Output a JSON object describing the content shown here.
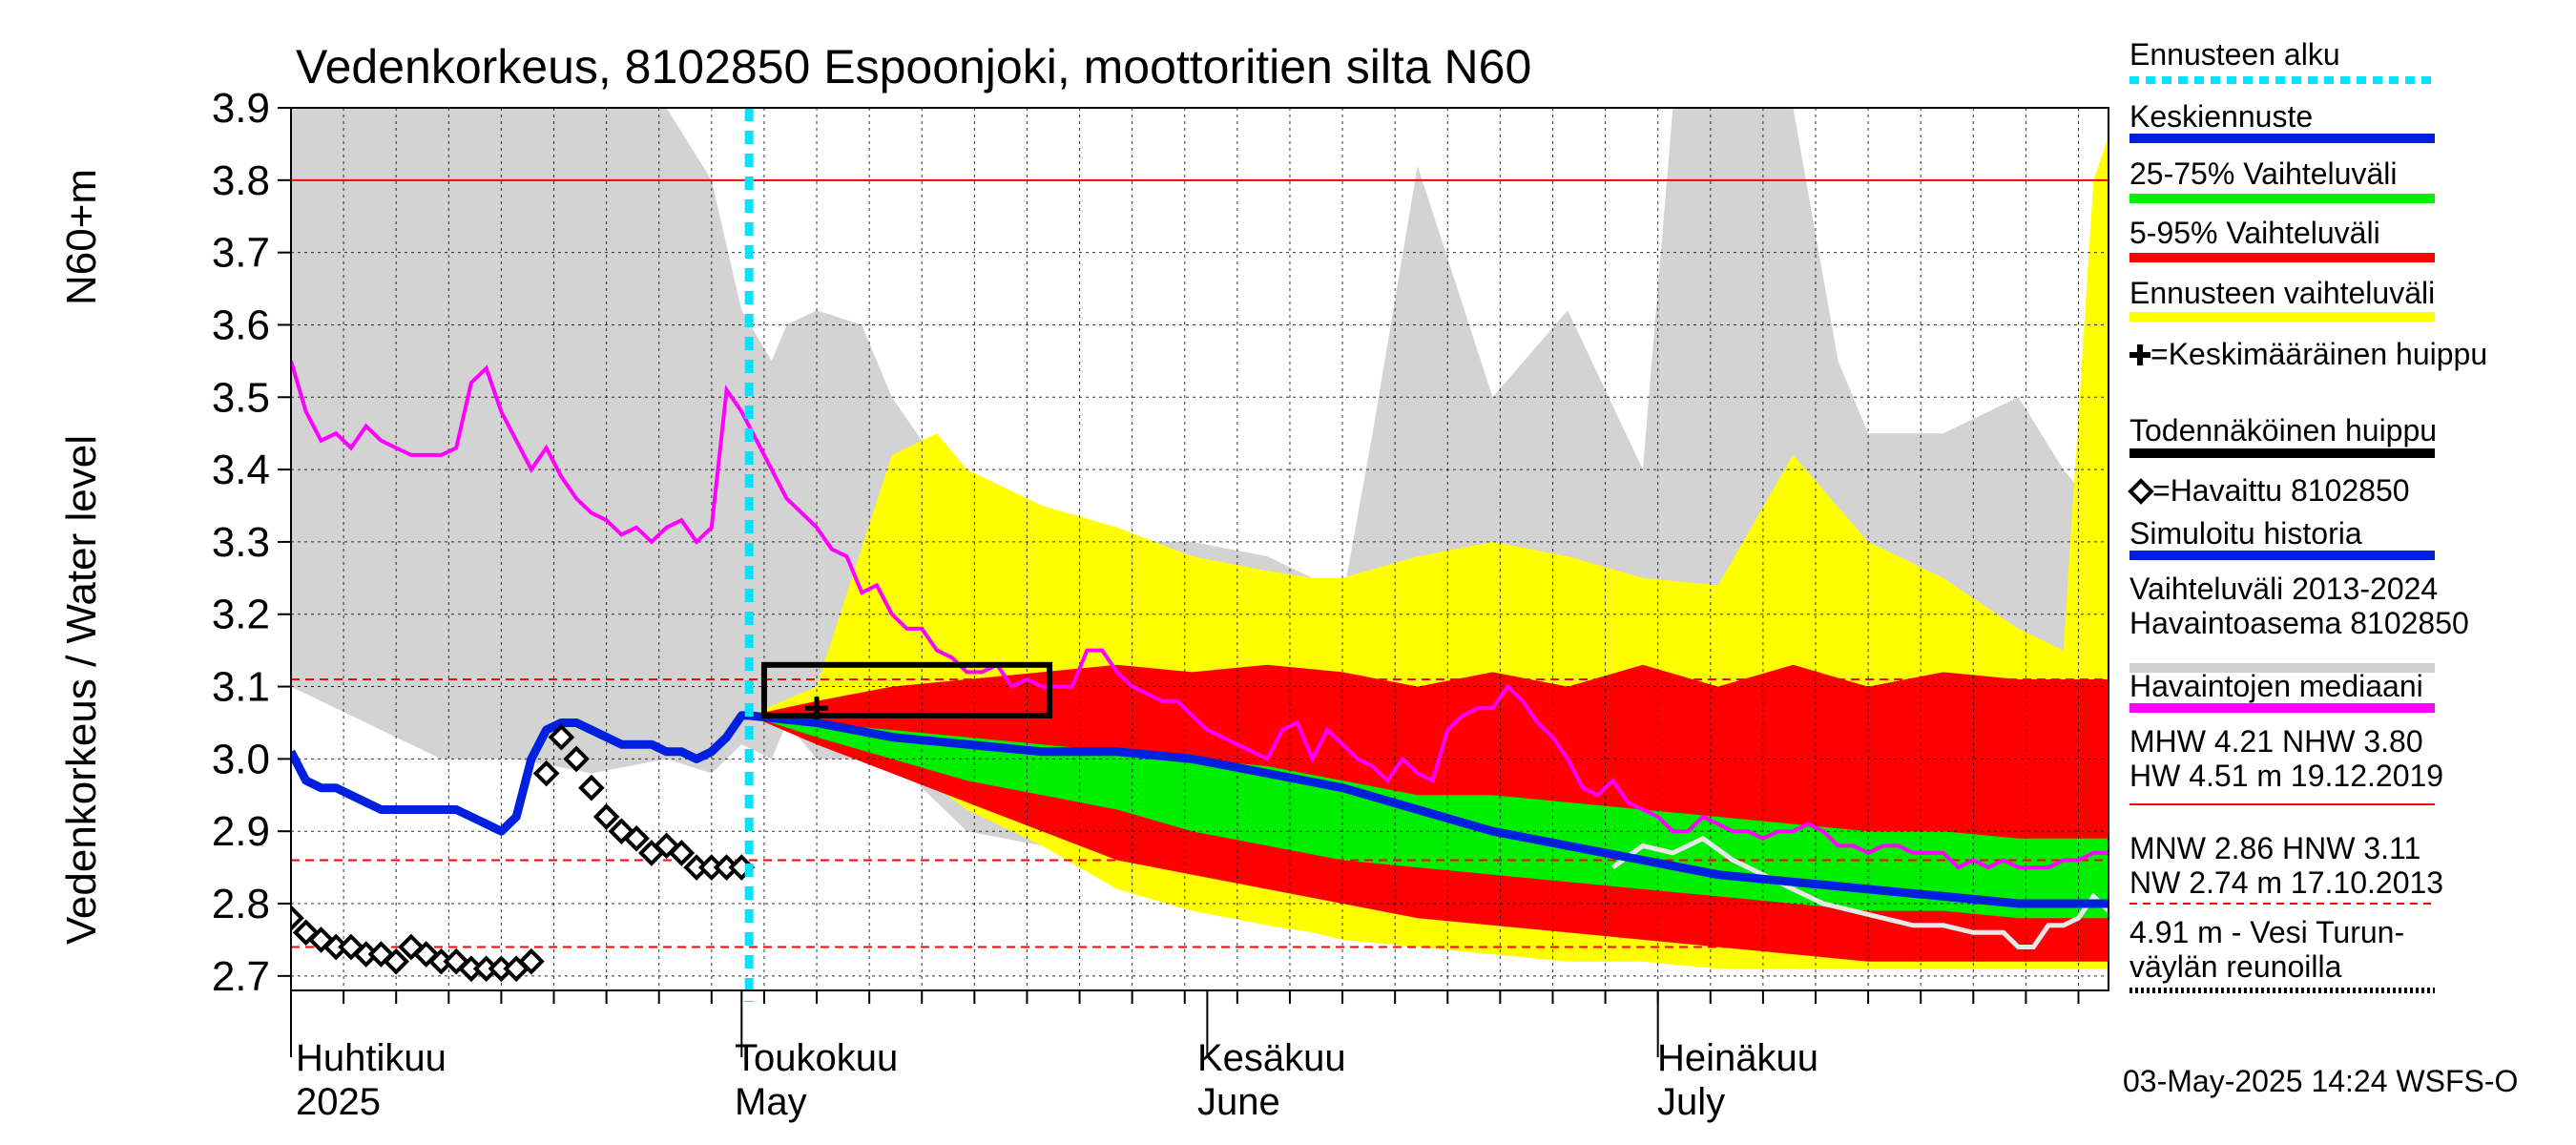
{
  "title": "Vedenkorkeus, 8102850 Espoonjoki, moottoritien silta N60",
  "y_axis_label_1": "N60+m",
  "y_axis_label_2": "Vedenkorkeus / Water level",
  "footer": "03-May-2025 14:24 WSFS-O",
  "months": [
    {
      "fi": "Huhtikuu",
      "en": "2025"
    },
    {
      "fi": "Toukokuu",
      "en": "May"
    },
    {
      "fi": "Kesäkuu",
      "en": "June"
    },
    {
      "fi": "Heinäkuu",
      "en": "July"
    }
  ],
  "legend": [
    {
      "label": "Ennusteen alku",
      "color": "#00e5ff",
      "style": "dotted"
    },
    {
      "label": "Keskiennuste",
      "color": "#0020e0",
      "style": "solid"
    },
    {
      "label": "25-75% Vaihteluväli",
      "color": "#00ee00",
      "style": "solid"
    },
    {
      "label": "5-95% Vaihteluväli",
      "color": "#ff0000",
      "style": "solid"
    },
    {
      "label": "Ennusteen vaihteluväli",
      "color": "#ffff00",
      "style": "solid"
    },
    {
      "label": "=Keskimääräinen huippu",
      "color": "#000000",
      "style": "plus"
    },
    {
      "label": "Todennäköinen huippu",
      "color": "#000000",
      "style": "solid"
    },
    {
      "label": "=Havaittu 8102850",
      "color": "#000000",
      "style": "diamond"
    },
    {
      "label": "Simuloitu historia",
      "color": "#0020e0",
      "style": "solid"
    },
    {
      "label": "Vaihteluväli 2013-2024\n Havaintoasema 8102850",
      "color": "#d0d0d0",
      "style": "solid"
    },
    {
      "label": "Havaintojen mediaani",
      "color": "#ff00ff",
      "style": "solid"
    },
    {
      "label": "MHW   4.21 NHW   3.80\nHW   4.51 m 19.12.2019",
      "color": "#ff0000",
      "style": "thin"
    },
    {
      "label": "MNW   2.86 HNW   3.11\nNW   2.74 m 17.10.2013",
      "color": "#ff0000",
      "style": "dashed"
    },
    {
      "label": "4.91 m - Vesi Turun-\nväylän reunoilla",
      "color": "#000000",
      "style": "dotted-thin"
    }
  ],
  "chart_data": {
    "type": "line",
    "x_range_days": [
      0,
      121
    ],
    "x_start_label": "2025-04-01",
    "ylim": [
      2.68,
      3.9
    ],
    "yticks": [
      2.7,
      2.8,
      2.9,
      3.0,
      3.1,
      3.2,
      3.3,
      3.4,
      3.5,
      3.6,
      3.7,
      3.8,
      3.9
    ],
    "forecast_start_day": 30.5,
    "reference_lines": [
      {
        "name": "NHW",
        "value": 3.8,
        "style": "solid"
      },
      {
        "name": "HNW",
        "value": 3.11,
        "style": "dashed"
      },
      {
        "name": "MNW",
        "value": 2.86,
        "style": "dashed"
      },
      {
        "name": "NW",
        "value": 2.74,
        "style": "dashed"
      }
    ],
    "probable_peak_box": {
      "x0": 31.5,
      "x1": 50.5,
      "y0": 3.06,
      "y1": 3.13
    },
    "mean_peak": {
      "x": 35,
      "y": 3.07
    },
    "historic_range": {
      "x": [
        0,
        5,
        10,
        15,
        20,
        25,
        28,
        30,
        32,
        33,
        35,
        38,
        40,
        45,
        50,
        55,
        60,
        65,
        68,
        70,
        72,
        75,
        80,
        85,
        90,
        92,
        95,
        100,
        103,
        105,
        110,
        115,
        118,
        120,
        121
      ],
      "upper": [
        3.9,
        3.9,
        3.9,
        3.9,
        3.9,
        3.9,
        3.8,
        3.62,
        3.55,
        3.6,
        3.62,
        3.6,
        3.5,
        3.35,
        3.32,
        3.3,
        3.3,
        3.28,
        3.25,
        3.22,
        3.45,
        3.82,
        3.5,
        3.62,
        3.4,
        3.9,
        3.9,
        3.9,
        3.55,
        3.45,
        3.45,
        3.5,
        3.4,
        3.35,
        3.4
      ],
      "lower": [
        3.1,
        3.05,
        3.0,
        3.0,
        2.98,
        3.0,
        2.98,
        3.02,
        3.0,
        3.05,
        3.0,
        3.0,
        3.0,
        2.9,
        2.88,
        2.85,
        2.83,
        2.82,
        2.82,
        2.8,
        2.8,
        2.8,
        2.8,
        2.78,
        2.76,
        2.74,
        2.74,
        2.72,
        2.72,
        2.72,
        2.72,
        2.72,
        2.72,
        2.72,
        2.72
      ]
    },
    "forecast_range": {
      "x": [
        30.5,
        35,
        40,
        43,
        45,
        50,
        55,
        60,
        65,
        68,
        70,
        75,
        80,
        85,
        90,
        95,
        100,
        105,
        110,
        115,
        118,
        120,
        121
      ],
      "upper": [
        3.06,
        3.1,
        3.42,
        3.45,
        3.4,
        3.35,
        3.32,
        3.28,
        3.26,
        3.25,
        3.25,
        3.28,
        3.3,
        3.28,
        3.25,
        3.24,
        3.42,
        3.3,
        3.25,
        3.18,
        3.15,
        3.8,
        3.86
      ],
      "lower": [
        3.06,
        3.03,
        3.0,
        2.96,
        2.93,
        2.88,
        2.82,
        2.79,
        2.77,
        2.76,
        2.75,
        2.74,
        2.73,
        2.72,
        2.72,
        2.71,
        2.71,
        2.71,
        2.71,
        2.71,
        2.71,
        2.71,
        2.71
      ]
    },
    "p5_95": {
      "x": [
        30.5,
        35,
        40,
        45,
        50,
        55,
        60,
        65,
        70,
        75,
        80,
        85,
        90,
        95,
        100,
        105,
        110,
        115,
        120,
        121
      ],
      "upper": [
        3.06,
        3.08,
        3.1,
        3.11,
        3.12,
        3.13,
        3.12,
        3.13,
        3.12,
        3.1,
        3.12,
        3.1,
        3.13,
        3.1,
        3.13,
        3.1,
        3.12,
        3.11,
        3.11,
        3.11
      ],
      "lower": [
        3.06,
        3.02,
        2.98,
        2.94,
        2.9,
        2.86,
        2.84,
        2.82,
        2.8,
        2.78,
        2.77,
        2.76,
        2.75,
        2.74,
        2.73,
        2.72,
        2.72,
        2.72,
        2.72,
        2.72
      ]
    },
    "p25_75": {
      "x": [
        30.5,
        35,
        40,
        45,
        50,
        55,
        60,
        65,
        70,
        75,
        80,
        85,
        90,
        95,
        100,
        105,
        110,
        115,
        120,
        121
      ],
      "upper": [
        3.06,
        3.05,
        3.04,
        3.03,
        3.02,
        3.01,
        3.0,
        2.99,
        2.97,
        2.95,
        2.95,
        2.94,
        2.93,
        2.92,
        2.91,
        2.9,
        2.9,
        2.89,
        2.89,
        2.89
      ],
      "lower": [
        3.06,
        3.03,
        3.0,
        2.97,
        2.95,
        2.93,
        2.9,
        2.88,
        2.86,
        2.85,
        2.84,
        2.83,
        2.82,
        2.81,
        2.8,
        2.79,
        2.79,
        2.78,
        2.78,
        2.78
      ]
    },
    "median_forecast": {
      "x": [
        30.5,
        35,
        40,
        45,
        50,
        55,
        60,
        65,
        70,
        75,
        80,
        85,
        90,
        95,
        100,
        105,
        110,
        115,
        120,
        121
      ],
      "y": [
        3.06,
        3.05,
        3.03,
        3.02,
        3.01,
        3.01,
        3.0,
        2.98,
        2.96,
        2.93,
        2.9,
        2.88,
        2.86,
        2.84,
        2.83,
        2.82,
        2.81,
        2.8,
        2.8,
        2.8
      ]
    },
    "simulated_history": {
      "x": [
        0,
        1,
        2,
        3,
        4,
        5,
        6,
        7,
        8,
        9,
        10,
        11,
        12,
        13,
        14,
        15,
        16,
        17,
        18,
        19,
        20,
        21,
        22,
        23,
        24,
        25,
        26,
        27,
        28,
        29,
        30,
        30.5
      ],
      "y": [
        3.01,
        2.97,
        2.96,
        2.96,
        2.95,
        2.94,
        2.93,
        2.93,
        2.93,
        2.93,
        2.93,
        2.93,
        2.92,
        2.91,
        2.9,
        2.92,
        3.0,
        3.04,
        3.05,
        3.05,
        3.04,
        3.03,
        3.02,
        3.02,
        3.02,
        3.01,
        3.01,
        3.0,
        3.01,
        3.03,
        3.06,
        3.06
      ]
    },
    "simulated_gray": {
      "x": [
        88,
        90,
        92,
        94,
        96,
        98,
        100,
        102,
        104,
        106,
        108,
        110,
        112,
        114,
        115,
        116,
        117,
        118,
        119,
        120,
        121
      ],
      "y": [
        2.85,
        2.88,
        2.87,
        2.89,
        2.86,
        2.84,
        2.82,
        2.8,
        2.79,
        2.78,
        2.77,
        2.77,
        2.76,
        2.76,
        2.74,
        2.74,
        2.77,
        2.77,
        2.78,
        2.81,
        2.79
      ]
    },
    "observed_median": {
      "x": [
        0,
        1,
        2,
        3,
        4,
        5,
        6,
        7,
        8,
        9,
        10,
        11,
        12,
        13,
        14,
        15,
        16,
        17,
        18,
        19,
        20,
        21,
        22,
        23,
        24,
        25,
        26,
        27,
        28,
        29,
        30,
        31,
        32,
        33,
        34,
        35,
        36,
        37,
        38,
        39,
        40,
        41,
        42,
        43,
        44,
        45,
        46,
        47,
        48,
        49,
        50,
        51,
        52,
        53,
        54,
        55,
        56,
        57,
        58,
        59,
        60,
        61,
        62,
        63,
        64,
        65,
        66,
        67,
        68,
        69,
        70,
        71,
        72,
        73,
        74,
        75,
        76,
        77,
        78,
        79,
        80,
        81,
        82,
        83,
        84,
        85,
        86,
        87,
        88,
        89,
        90,
        91,
        92,
        93,
        94,
        95,
        96,
        97,
        98,
        99,
        100,
        101,
        102,
        103,
        104,
        105,
        106,
        107,
        108,
        109,
        110,
        111,
        112,
        113,
        114,
        115,
        116,
        117,
        118,
        119,
        120,
        121
      ],
      "y": [
        3.55,
        3.48,
        3.44,
        3.45,
        3.43,
        3.46,
        3.44,
        3.43,
        3.42,
        3.42,
        3.42,
        3.43,
        3.52,
        3.54,
        3.48,
        3.44,
        3.4,
        3.43,
        3.39,
        3.36,
        3.34,
        3.33,
        3.31,
        3.32,
        3.3,
        3.32,
        3.33,
        3.3,
        3.32,
        3.51,
        3.48,
        3.44,
        3.4,
        3.36,
        3.34,
        3.32,
        3.29,
        3.28,
        3.23,
        3.24,
        3.2,
        3.18,
        3.18,
        3.15,
        3.14,
        3.12,
        3.12,
        3.13,
        3.1,
        3.11,
        3.1,
        3.1,
        3.1,
        3.15,
        3.15,
        3.12,
        3.1,
        3.09,
        3.08,
        3.08,
        3.06,
        3.04,
        3.03,
        3.02,
        3.01,
        3.0,
        3.04,
        3.05,
        3.0,
        3.04,
        3.02,
        3.0,
        2.99,
        2.97,
        3.0,
        2.98,
        2.97,
        3.04,
        3.06,
        3.07,
        3.07,
        3.1,
        3.08,
        3.05,
        3.03,
        3.0,
        2.96,
        2.95,
        2.97,
        2.94,
        2.93,
        2.92,
        2.9,
        2.9,
        2.92,
        2.91,
        2.9,
        2.9,
        2.89,
        2.9,
        2.9,
        2.91,
        2.9,
        2.88,
        2.88,
        2.87,
        2.88,
        2.88,
        2.87,
        2.87,
        2.87,
        2.85,
        2.86,
        2.85,
        2.86,
        2.85,
        2.85,
        2.85,
        2.86,
        2.86,
        2.87,
        2.87
      ]
    },
    "observed": {
      "x": [
        0,
        1,
        2,
        3,
        4,
        5,
        6,
        7,
        8,
        9,
        10,
        11,
        12,
        13,
        14,
        15,
        16,
        17,
        18,
        19,
        20,
        21,
        22,
        23,
        24,
        25,
        26,
        27,
        28,
        29,
        30
      ],
      "y": [
        2.78,
        2.76,
        2.75,
        2.74,
        2.74,
        2.73,
        2.73,
        2.72,
        2.74,
        2.73,
        2.72,
        2.72,
        2.71,
        2.71,
        2.71,
        2.71,
        2.72,
        2.98,
        3.03,
        3.0,
        2.96,
        2.92,
        2.9,
        2.89,
        2.87,
        2.88,
        2.87,
        2.85,
        2.85,
        2.85,
        2.85
      ]
    }
  }
}
